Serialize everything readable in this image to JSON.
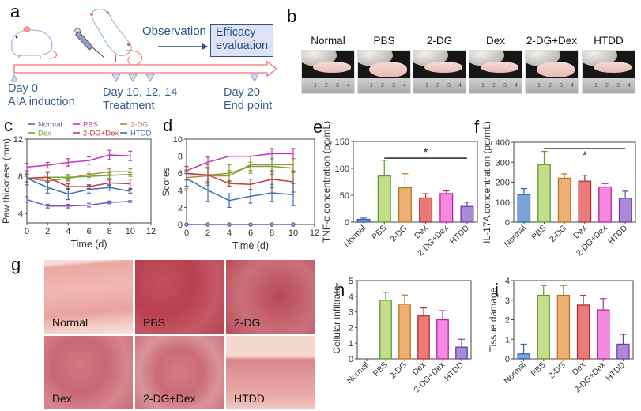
{
  "figure": {
    "panel_letters": [
      "a",
      "b",
      "c",
      "d",
      "e",
      "f",
      "g",
      "h",
      "i"
    ]
  },
  "panel_a": {
    "observation_label": "Observation",
    "efficacy_box": [
      "Efficacy",
      "evaluation"
    ],
    "timeline": [
      {
        "day_label": "Day 0",
        "event": "AIA induction"
      },
      {
        "day_label": "Day 10, 12, 14",
        "event": "Treatment"
      },
      {
        "day_label": "Day 20",
        "event": "End point"
      }
    ],
    "icons": [
      "mouse-icon",
      "syringe-icon",
      "injected-mouse-icon",
      "arrow-right-icon",
      "timeline-arrow-icon"
    ],
    "colors": {
      "timeline": "#f28b8b",
      "text": "#3b5a8c",
      "box_fill": "#dde3f6",
      "box_border": "#3b4f86"
    }
  },
  "panel_b": {
    "groups": [
      "Normal",
      "PBS",
      "2-DG",
      "Dex",
      "2-DG+Dex",
      "HTDD"
    ],
    "ruler_marks": [
      "1",
      "2",
      "3",
      "4"
    ]
  },
  "series_colors": {
    "Normal": "#7b55c4",
    "PBS": "#c236b8",
    "2-DG": "#b9853c",
    "Dex": "#6aa83a",
    "2-DG+Dex": "#c23a3a",
    "HTDD": "#3d6fb8"
  },
  "bar_colors": {
    "Normal": {
      "fill": "#7aa3dc",
      "stroke": "#2e63b0"
    },
    "PBS": {
      "fill": "#c2de8c",
      "stroke": "#5e9a30"
    },
    "2-DG": {
      "fill": "#eeb070",
      "stroke": "#b9742c"
    },
    "Dex": {
      "fill": "#eb7a78",
      "stroke": "#b3303a"
    },
    "2-DG+Dex": {
      "fill": "#f38ae0",
      "stroke": "#b8249f"
    },
    "HTDD": {
      "fill": "#aa8ad6",
      "stroke": "#6a3fa6"
    }
  },
  "panel_g": {
    "labels": [
      "Normal",
      "PBS",
      "2-DG",
      "Dex",
      "2-DG+Dex",
      "HTDD"
    ]
  },
  "chart_data": [
    {
      "id": "c",
      "type": "line",
      "title": "",
      "xlabel": "Time (d)",
      "ylabel": "Paw thickness (mm)",
      "xlim": [
        0,
        12
      ],
      "ylim": [
        3,
        12
      ],
      "xticks": [
        0,
        2,
        4,
        6,
        8,
        10,
        12
      ],
      "yticks": [
        4,
        8,
        12
      ],
      "legend_position": "top",
      "x": [
        0,
        2,
        4,
        6,
        8,
        10
      ],
      "series": [
        {
          "name": "Normal",
          "values": [
            5.5,
            4.8,
            4.8,
            4.9,
            5.2,
            5.3
          ],
          "errors": [
            0.3,
            0.2,
            0.2,
            0.2,
            0.15,
            0.1
          ]
        },
        {
          "name": "PBS",
          "values": [
            9.0,
            9.2,
            9.5,
            9.7,
            10.3,
            10.2
          ],
          "errors": [
            0.4,
            0.3,
            0.4,
            0.4,
            0.5,
            0.5
          ]
        },
        {
          "name": "2-DG",
          "values": [
            7.8,
            7.5,
            7.8,
            8.2,
            8.5,
            8.5
          ],
          "errors": [
            0.5,
            0.9,
            0.3,
            0.3,
            0.3,
            0.3
          ]
        },
        {
          "name": "Dex",
          "values": [
            7.8,
            7.9,
            7.9,
            8.0,
            8.1,
            8.2
          ],
          "errors": [
            0.4,
            0.5,
            0.3,
            0.3,
            0.3,
            0.2
          ]
        },
        {
          "name": "2-DG+Dex",
          "values": [
            7.8,
            7.9,
            6.9,
            6.9,
            7.3,
            7.2
          ],
          "errors": [
            0.4,
            0.6,
            0.3,
            0.2,
            0.3,
            0.5
          ]
        },
        {
          "name": "HTDD",
          "values": [
            7.8,
            6.8,
            6.1,
            6.6,
            6.8,
            6.4
          ],
          "errors": [
            0.7,
            0.6,
            0.6,
            0.4,
            0.3,
            0.2
          ]
        }
      ]
    },
    {
      "id": "d",
      "type": "line",
      "title": "",
      "xlabel": "Time (d)",
      "ylabel": "Scores",
      "xlim": [
        0,
        12
      ],
      "ylim": [
        0,
        10
      ],
      "xticks": [
        0,
        2,
        4,
        6,
        8,
        10,
        12
      ],
      "yticks": [
        0,
        2,
        4,
        6,
        8,
        10
      ],
      "x": [
        0,
        2,
        4,
        6,
        8,
        10
      ],
      "series": [
        {
          "name": "Normal",
          "values": [
            0,
            0,
            0,
            0,
            0,
            0
          ],
          "errors": [
            0,
            0,
            0,
            0,
            0,
            0
          ]
        },
        {
          "name": "PBS",
          "values": [
            6.3,
            7.3,
            8.0,
            8.0,
            8.3,
            8.3
          ],
          "errors": [
            0.5,
            0.6,
            0.0,
            0.0,
            0.6,
            0.6
          ]
        },
        {
          "name": "2-DG",
          "values": [
            5.5,
            5.7,
            5.7,
            7.0,
            7.0,
            7.0
          ],
          "errors": [
            1.3,
            0.9,
            0.6,
            1.0,
            0.7,
            0.7
          ]
        },
        {
          "name": "Dex",
          "values": [
            5.8,
            5.8,
            6.0,
            6.8,
            6.8,
            6.6
          ],
          "errors": [
            0.6,
            1.2,
            1.0,
            0.5,
            0.9,
            0.5
          ]
        },
        {
          "name": "2-DG+Dex",
          "values": [
            6.0,
            5.8,
            4.8,
            4.7,
            5.3,
            5.0
          ],
          "errors": [
            0.8,
            0.8,
            0.3,
            0.6,
            1.0,
            1.2
          ]
        },
        {
          "name": "HTDD",
          "values": [
            5.4,
            4.0,
            2.8,
            3.3,
            3.7,
            3.5
          ],
          "errors": [
            0.9,
            1.3,
            0.8,
            0.8,
            1.0,
            1.3
          ]
        }
      ]
    },
    {
      "id": "e",
      "type": "bar",
      "title": "",
      "xlabel": "",
      "ylabel": "TNF-α concentration (pg/mL)",
      "ylim": [
        0,
        150
      ],
      "yticks": [
        0,
        50,
        100,
        150
      ],
      "categories": [
        "Normal",
        "PBS",
        "2-DG",
        "Dex",
        "2-DG+Dex",
        "HTDD"
      ],
      "values": [
        5,
        86,
        64,
        45,
        53,
        29
      ],
      "errors": [
        2.5,
        29,
        26,
        8,
        5,
        8
      ],
      "significance": {
        "from": "PBS",
        "to": "HTDD",
        "label": "*",
        "level": 119,
        "star_position": "above"
      }
    },
    {
      "id": "f",
      "type": "bar",
      "title": "",
      "xlabel": "",
      "ylabel": "IL-17A concentration (pg/mL)",
      "ylim": [
        0,
        400
      ],
      "yticks": [
        0,
        100,
        200,
        300,
        400
      ],
      "categories": [
        "Normal",
        "PBS",
        "2-DG",
        "Dex",
        "2-DG+Dex",
        "HTDD"
      ],
      "values": [
        138,
        288,
        220,
        205,
        176,
        120
      ],
      "errors": [
        30,
        66,
        22,
        30,
        17,
        35
      ],
      "significance": {
        "from": "PBS",
        "to": "HTDD",
        "label": "*",
        "level": 368,
        "star_position": "below"
      }
    },
    {
      "id": "h",
      "type": "bar",
      "title": "",
      "xlabel": "",
      "ylabel": "Cellular infiltrate",
      "ylim": [
        0,
        5
      ],
      "yticks": [
        0,
        1,
        2,
        3,
        4,
        5
      ],
      "categories": [
        "Normal",
        "PBS",
        "2-DG",
        "Dex",
        "2-DG+Dex",
        "HTDD"
      ],
      "values": [
        0,
        3.75,
        3.5,
        2.75,
        2.5,
        0.75
      ],
      "errors": [
        0,
        0.5,
        0.58,
        0.5,
        0.58,
        0.5
      ]
    },
    {
      "id": "i",
      "type": "bar",
      "title": "",
      "xlabel": "",
      "ylabel": "Tissue damage",
      "ylim": [
        0,
        4
      ],
      "yticks": [
        0,
        1,
        2,
        3,
        4
      ],
      "categories": [
        "Normal",
        "PBS",
        "2-DG",
        "Dex",
        "2-DG+Dex",
        "HTDD"
      ],
      "values": [
        0.25,
        3.25,
        3.25,
        2.75,
        2.5,
        0.75
      ],
      "errors": [
        0.5,
        0.5,
        0.5,
        0.5,
        0.58,
        0.5
      ]
    }
  ]
}
